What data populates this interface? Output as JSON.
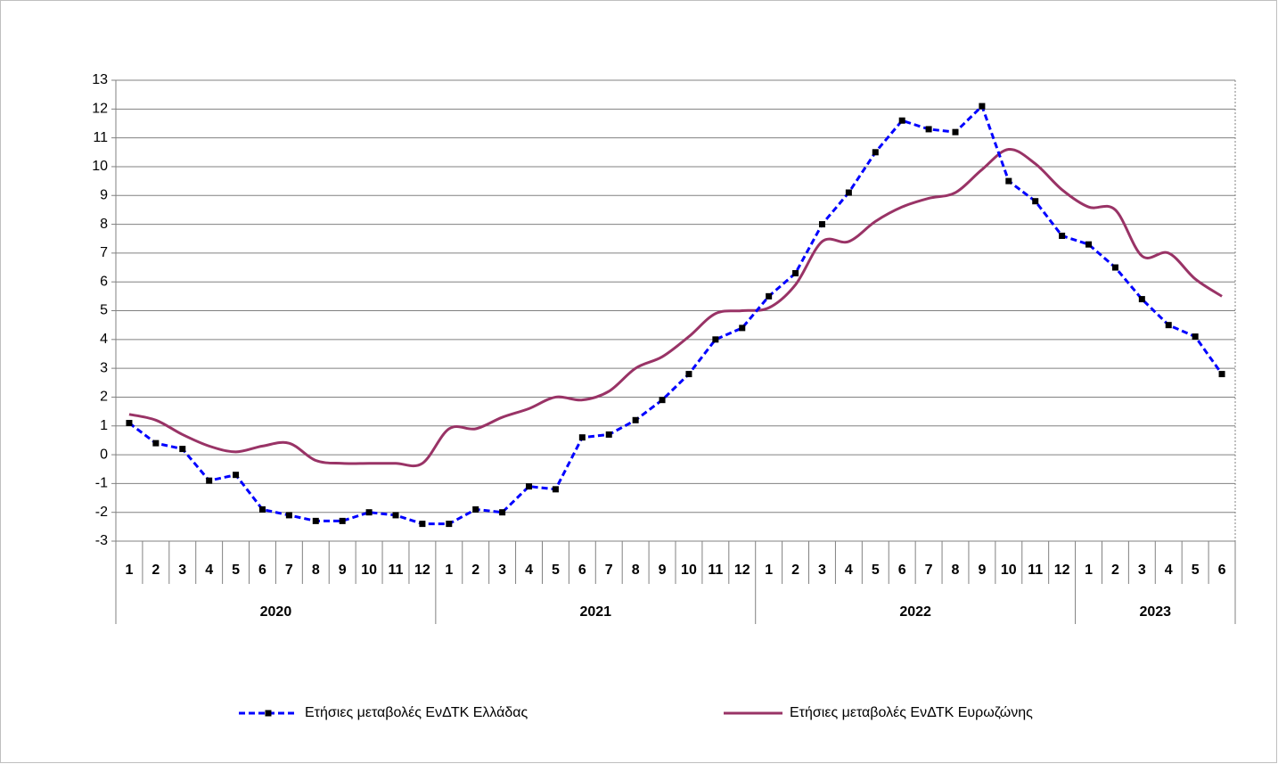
{
  "chart_data": {
    "type": "line",
    "categories": [
      "1",
      "2",
      "3",
      "4",
      "5",
      "6",
      "7",
      "8",
      "9",
      "10",
      "11",
      "12",
      "1",
      "2",
      "3",
      "4",
      "5",
      "6",
      "7",
      "8",
      "9",
      "10",
      "11",
      "12",
      "1",
      "2",
      "3",
      "4",
      "5",
      "6",
      "7",
      "8",
      "9",
      "10",
      "11",
      "12",
      "1",
      "2",
      "3",
      "4",
      "5",
      "6"
    ],
    "year_groups": [
      "2020",
      "2021",
      "2022",
      "2023"
    ],
    "series": [
      {
        "name": "Ετήσιες μεταβολές ΕνΔΤΚ Ελλάδας",
        "color": "#0000ff",
        "style": "dashed-markers",
        "values": [
          1.1,
          0.4,
          0.2,
          -0.9,
          -0.7,
          -1.9,
          -2.1,
          -2.3,
          -2.3,
          -2.0,
          -2.1,
          -2.4,
          -2.4,
          -1.9,
          -2.0,
          -1.1,
          -1.2,
          0.6,
          0.7,
          1.2,
          1.9,
          2.8,
          4.0,
          4.4,
          5.5,
          6.3,
          8.0,
          9.1,
          10.5,
          11.6,
          11.3,
          11.2,
          12.1,
          9.5,
          8.8,
          7.6,
          7.3,
          6.5,
          5.4,
          4.5,
          4.1,
          2.8
        ]
      },
      {
        "name": "Ετήσιες μεταβολές ΕνΔΤΚ Ευρωζώνης",
        "color": "#993366",
        "style": "smooth",
        "values": [
          1.4,
          1.2,
          0.7,
          0.3,
          0.1,
          0.3,
          0.4,
          -0.2,
          -0.3,
          -0.3,
          -0.3,
          -0.3,
          0.9,
          0.9,
          1.3,
          1.6,
          2.0,
          1.9,
          2.2,
          3.0,
          3.4,
          4.1,
          4.9,
          5.0,
          5.1,
          5.9,
          7.4,
          7.4,
          8.1,
          8.6,
          8.9,
          9.1,
          9.9,
          10.6,
          10.1,
          9.2,
          8.6,
          8.5,
          6.9,
          7.0,
          6.1,
          5.5
        ]
      }
    ],
    "ylim": [
      -3,
      13
    ],
    "yticks": [
      -3,
      -2,
      -1,
      0,
      1,
      2,
      3,
      4,
      5,
      6,
      7,
      8,
      9,
      10,
      11,
      12,
      13
    ],
    "grid": true
  }
}
